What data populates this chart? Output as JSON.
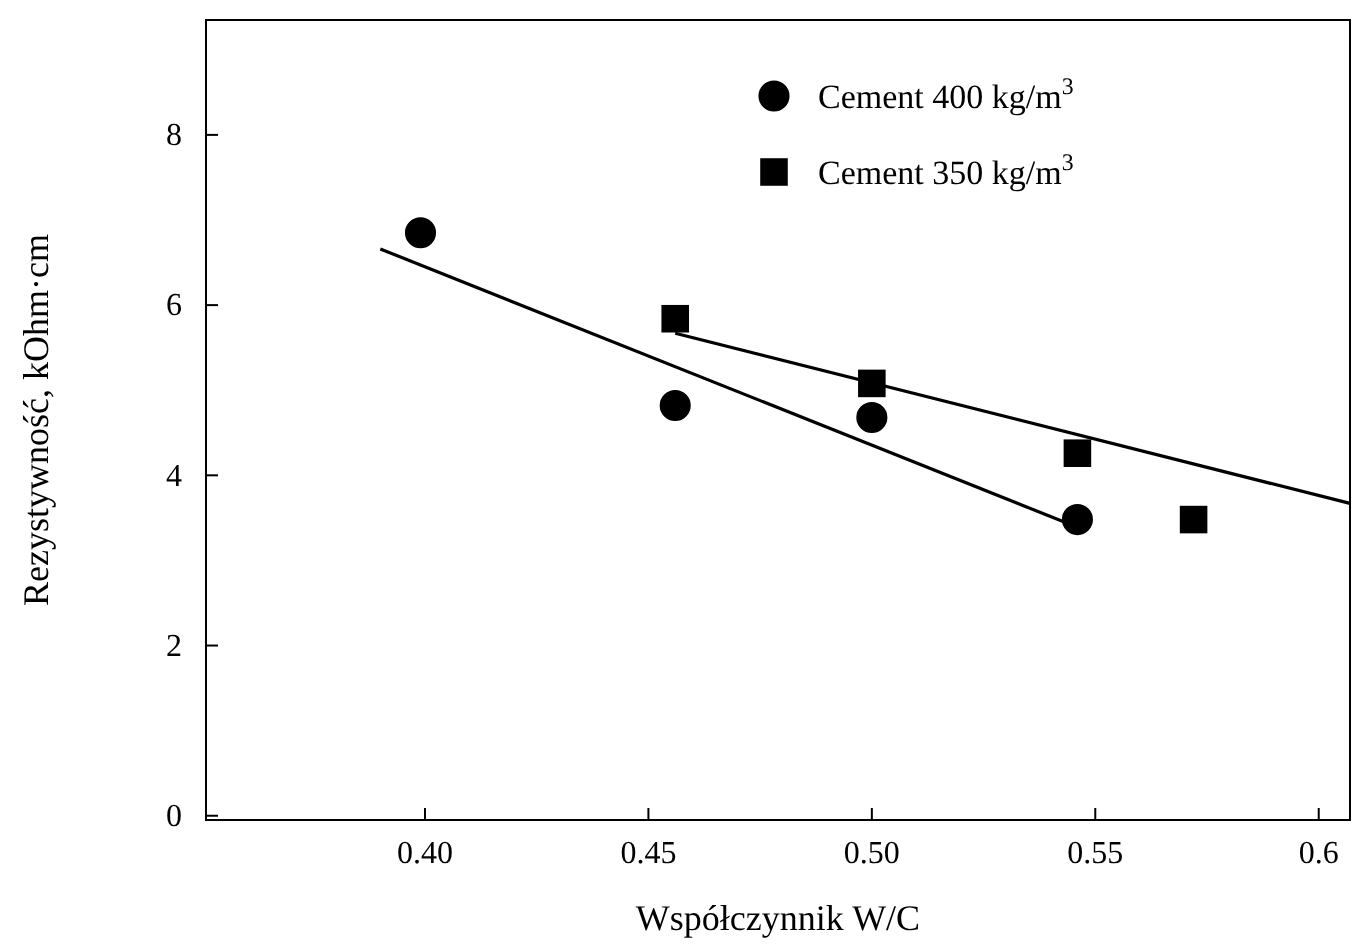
{
  "chart_data": {
    "type": "scatter",
    "xlabel": "Współczynnik W/C",
    "ylabel": "Rezystywność, kOhm·cm",
    "xlim": [
      0.351,
      0.607
    ],
    "ylim": [
      -0.05,
      9.35
    ],
    "xticks": [
      {
        "value": 0.4,
        "label": "0.40"
      },
      {
        "value": 0.45,
        "label": "0.45"
      },
      {
        "value": 0.5,
        "label": "0.50"
      },
      {
        "value": 0.55,
        "label": "0.55"
      },
      {
        "value": 0.6,
        "label": "0.6"
      }
    ],
    "yticks": [
      0,
      2,
      4,
      6,
      8
    ],
    "grid": false,
    "legend": "top right",
    "series": [
      {
        "name": "Cement 400 kg/m$^{3}$",
        "color": "#000000",
        "marker": "circle",
        "x": [
          0.399,
          0.456,
          0.5,
          0.546
        ],
        "values": [
          6.85,
          4.82,
          4.68,
          3.48
        ]
      },
      {
        "name": "Cement 350 kg/m$^{3}$",
        "color": "#000000",
        "marker": "square",
        "x": [
          0.456,
          0.5,
          0.546,
          0.572
        ],
        "values": [
          5.84,
          5.08,
          4.26,
          3.48
        ]
      },
      {
        "type": "line",
        "color": "#000000",
        "marker": "none",
        "x": [
          0.39,
          0.546
        ],
        "values": [
          6.66,
          3.39
        ]
      },
      {
        "type": "line",
        "color": "#000000",
        "marker": "none",
        "x": [
          0.456,
          0.607
        ],
        "values": [
          5.67,
          3.67
        ]
      }
    ]
  }
}
